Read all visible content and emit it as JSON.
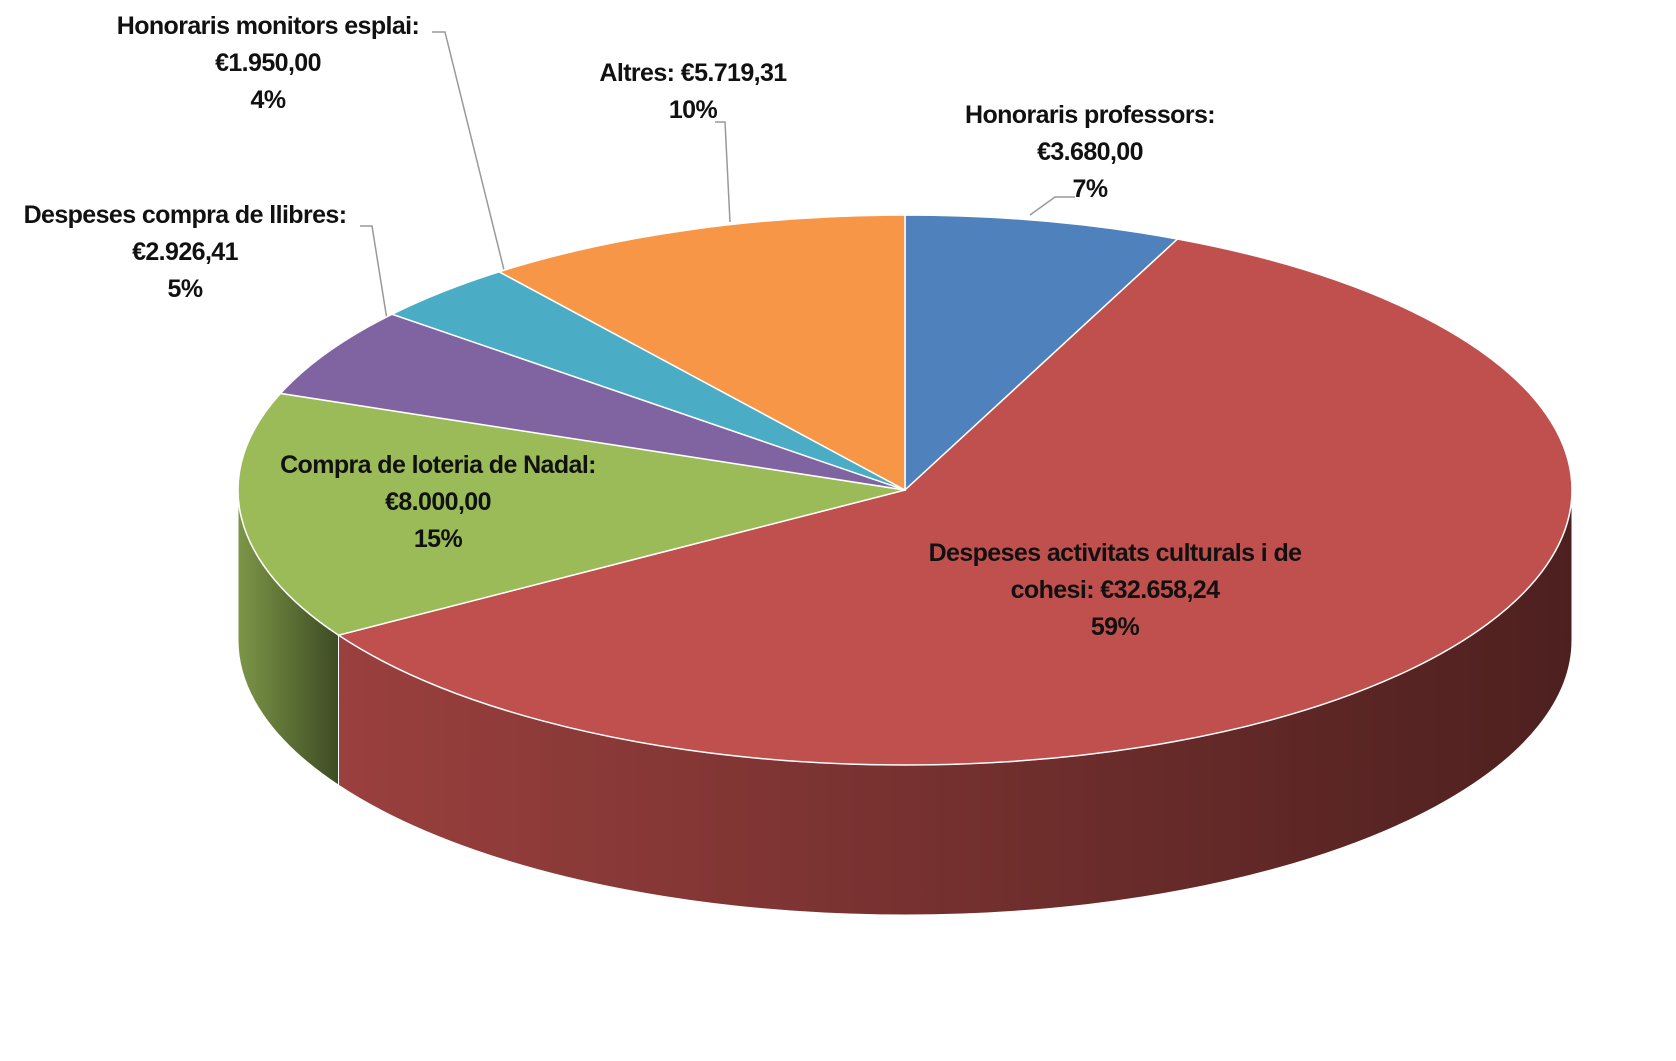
{
  "chart_data": {
    "type": "pie",
    "categories": [
      "Honoraris professors:",
      "Despeses activitats culturals i de cohesi:",
      "Compra de loteria de Nadal:",
      "Despeses compra de llibres:",
      "Honoraris monitors esplai:",
      "Altres:"
    ],
    "values": [
      3680,
      32658.24,
      8000,
      2926.41,
      1950,
      5719.31
    ],
    "value_labels": [
      "€3.680,00",
      "€32.658,24",
      "€8.000,00",
      "€2.926,41",
      "€1.950,00",
      "€5.719,31"
    ],
    "percentages": [
      7,
      59,
      15,
      5,
      4,
      10
    ],
    "percentage_labels": [
      "7%",
      "59%",
      "15%",
      "5%",
      "4%",
      "10%"
    ],
    "colors": [
      "#4f81bd",
      "#c0504d",
      "#9bbb59",
      "#8064a2",
      "#4bacc6",
      "#f79646"
    ]
  }
}
